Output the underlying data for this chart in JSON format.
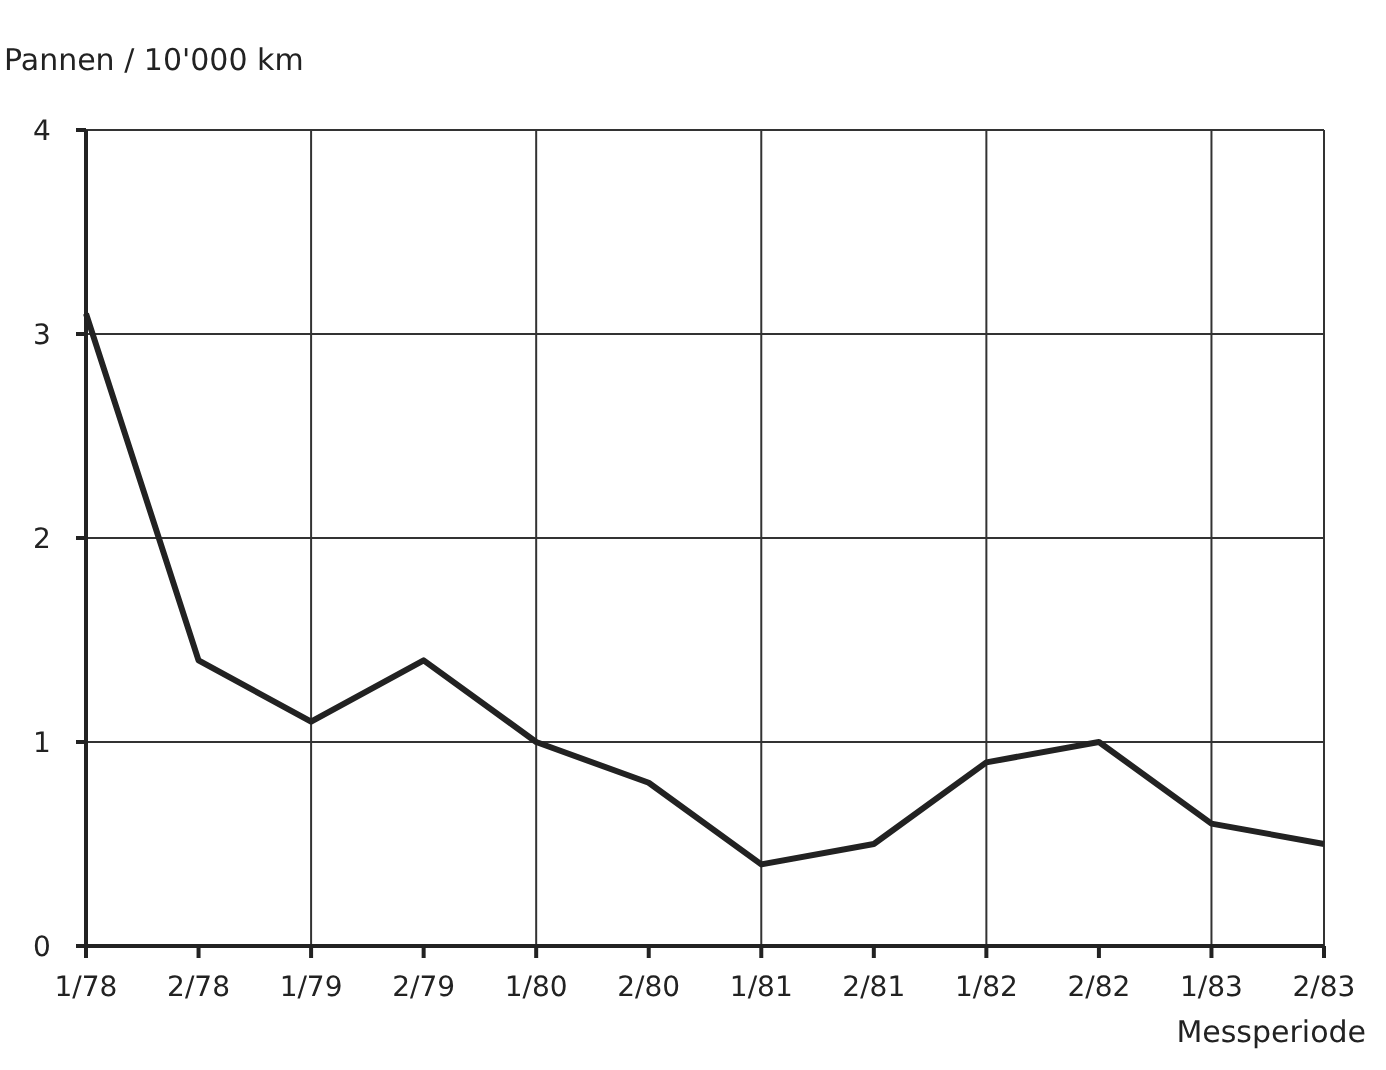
{
  "chart_data": {
    "type": "line",
    "ylabel": "Pannen / 10'000 km",
    "xlabel": "Messperiode",
    "categories": [
      "1/78",
      "2/78",
      "1/79",
      "2/79",
      "1/80",
      "2/80",
      "1/81",
      "2/81",
      "1/82",
      "2/82",
      "1/83",
      "2/83"
    ],
    "series": [
      {
        "color": "#222222",
        "values": [
          3.1,
          1.4,
          1.1,
          1.4,
          1.0,
          0.8,
          0.4,
          0.5,
          0.9,
          1.0,
          0.6,
          0.5
        ]
      }
    ],
    "ylim": [
      0,
      4
    ],
    "yticks": [
      0,
      1,
      2,
      3,
      4
    ],
    "grid": true,
    "marker": "none",
    "line_style": "solid"
  }
}
